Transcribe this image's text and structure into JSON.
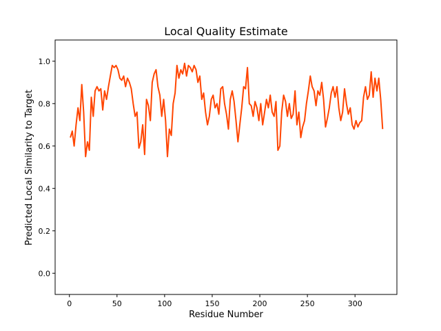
{
  "chart_data": {
    "type": "line",
    "title": "Local Quality Estimate",
    "xlabel": "Residue Number",
    "ylabel": "Predicted Local Similarity to Target",
    "xlim": [
      -15,
      344
    ],
    "ylim": [
      -0.1,
      1.1
    ],
    "xticks": [
      0,
      50,
      100,
      150,
      200,
      250,
      300
    ],
    "yticks": [
      0.0,
      0.2,
      0.4,
      0.6,
      0.8,
      1.0
    ],
    "ytick_labels": [
      "0.0",
      "0.2",
      "0.4",
      "0.6",
      "0.8",
      "1.0"
    ],
    "grid": false,
    "line_color": "#ff4500",
    "series": [
      {
        "x": [
          1,
          3,
          5,
          7,
          9,
          11,
          13,
          15,
          17,
          19,
          21,
          23,
          25,
          27,
          29,
          31,
          33,
          35,
          37,
          39,
          41,
          43,
          45,
          47,
          49,
          51,
          53,
          55,
          57,
          59,
          61,
          63,
          65,
          67,
          69,
          71,
          73,
          75,
          77,
          79,
          81,
          83,
          85,
          87,
          89,
          91,
          93,
          95,
          97,
          99,
          101,
          103,
          105,
          107,
          109,
          111,
          113,
          115,
          117,
          119,
          121,
          123,
          125,
          127,
          129,
          131,
          133,
          135,
          137,
          139,
          141,
          143,
          145,
          147,
          149,
          151,
          153,
          155,
          157,
          159,
          161,
          163,
          165,
          167,
          169,
          171,
          173,
          175,
          177,
          179,
          181,
          183,
          185,
          187,
          189,
          191,
          193,
          195,
          197,
          199,
          201,
          203,
          205,
          207,
          209,
          211,
          213,
          215,
          217,
          219,
          221,
          223,
          225,
          227,
          229,
          231,
          233,
          235,
          237,
          239,
          241,
          243,
          245,
          247,
          249,
          251,
          253,
          255,
          257,
          259,
          261,
          263,
          265,
          267,
          269,
          271,
          273,
          275,
          277,
          279,
          281,
          283,
          285,
          287,
          289,
          291,
          293,
          295,
          297,
          299,
          301,
          303,
          305,
          307,
          309,
          311,
          313,
          315,
          317,
          319,
          321,
          323,
          325,
          327,
          329
        ],
        "y": [
          0.64,
          0.67,
          0.6,
          0.7,
          0.78,
          0.72,
          0.89,
          0.76,
          0.55,
          0.62,
          0.58,
          0.83,
          0.74,
          0.86,
          0.88,
          0.86,
          0.87,
          0.77,
          0.86,
          0.82,
          0.88,
          0.93,
          0.98,
          0.97,
          0.98,
          0.96,
          0.92,
          0.91,
          0.93,
          0.88,
          0.92,
          0.9,
          0.87,
          0.8,
          0.74,
          0.76,
          0.59,
          0.62,
          0.7,
          0.56,
          0.82,
          0.79,
          0.72,
          0.9,
          0.94,
          0.96,
          0.88,
          0.84,
          0.74,
          0.82,
          0.72,
          0.55,
          0.68,
          0.65,
          0.8,
          0.85,
          0.98,
          0.92,
          0.96,
          0.94,
          0.99,
          0.93,
          0.98,
          0.97,
          0.95,
          0.98,
          0.96,
          0.9,
          0.93,
          0.82,
          0.85,
          0.76,
          0.7,
          0.74,
          0.82,
          0.84,
          0.78,
          0.8,
          0.75,
          0.87,
          0.88,
          0.8,
          0.75,
          0.68,
          0.82,
          0.86,
          0.81,
          0.72,
          0.62,
          0.7,
          0.78,
          0.88,
          0.87,
          0.97,
          0.8,
          0.79,
          0.74,
          0.81,
          0.78,
          0.72,
          0.8,
          0.7,
          0.76,
          0.82,
          0.78,
          0.84,
          0.76,
          0.74,
          0.81,
          0.58,
          0.6,
          0.76,
          0.84,
          0.81,
          0.74,
          0.8,
          0.73,
          0.75,
          0.86,
          0.7,
          0.76,
          0.64,
          0.69,
          0.72,
          0.8,
          0.86,
          0.93,
          0.88,
          0.86,
          0.79,
          0.86,
          0.84,
          0.9,
          0.82,
          0.69,
          0.73,
          0.78,
          0.85,
          0.88,
          0.83,
          0.88,
          0.78,
          0.72,
          0.76,
          0.87,
          0.8,
          0.75,
          0.78,
          0.7,
          0.68,
          0.72,
          0.69,
          0.71,
          0.72,
          0.83,
          0.88,
          0.82,
          0.84,
          0.95,
          0.83,
          0.92,
          0.86,
          0.92,
          0.82,
          0.68
        ]
      }
    ]
  }
}
